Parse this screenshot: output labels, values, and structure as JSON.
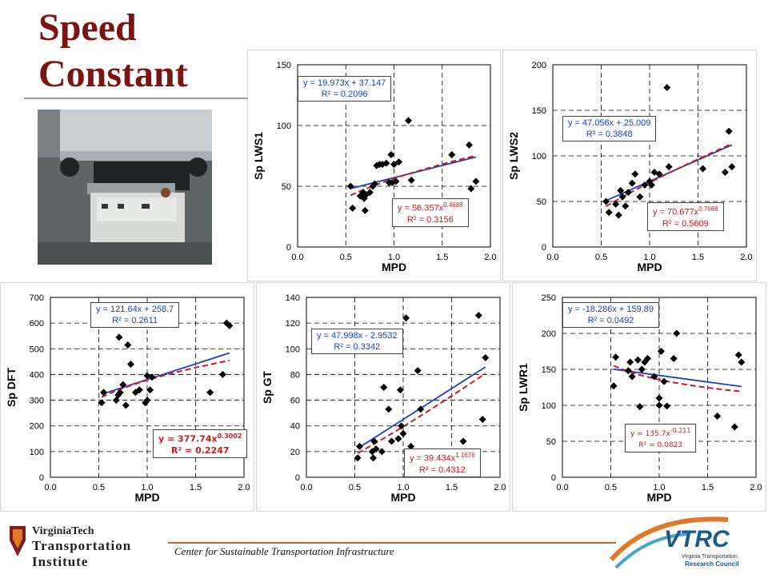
{
  "page": {
    "title_line1": "Speed",
    "title_line2": "Constant",
    "footer_text": "Center for Sustainable Transportation Infrastructure",
    "vt_logo": {
      "line1": "VirginiaTech",
      "line2": "Transportation",
      "line3": "Institute"
    },
    "vtrc_logo": {
      "name": "VTRC",
      "sub1": "Virginia Transportation",
      "sub2": "Research Council"
    }
  },
  "colors": {
    "title": "#7a1513",
    "linear_fit": "#1f3fbf",
    "power_fit": "#c81d1d",
    "points": "#000000"
  },
  "chart_data": [
    {
      "id": "lws1",
      "type": "scatter",
      "xlabel": "MPD",
      "ylabel": "Sp LWS1",
      "xlim": [
        0,
        2.0
      ],
      "ylim": [
        0,
        150
      ],
      "xticks": [
        "0.0",
        "0.5",
        "1.0",
        "1.5",
        "2.0"
      ],
      "yticks": [
        "0",
        "50",
        "100",
        "150"
      ],
      "grid": true,
      "points": [
        [
          0.55,
          50
        ],
        [
          0.57,
          32
        ],
        [
          0.65,
          42
        ],
        [
          0.68,
          45
        ],
        [
          0.69,
          40
        ],
        [
          0.7,
          30
        ],
        [
          0.71,
          43
        ],
        [
          0.75,
          45
        ],
        [
          0.78,
          50
        ],
        [
          0.8,
          52
        ],
        [
          0.82,
          67
        ],
        [
          0.85,
          68
        ],
        [
          0.88,
          68
        ],
        [
          0.92,
          69
        ],
        [
          0.95,
          53
        ],
        [
          0.97,
          76
        ],
        [
          0.98,
          53
        ],
        [
          1.0,
          68
        ],
        [
          1.02,
          54
        ],
        [
          1.05,
          70
        ],
        [
          1.15,
          104
        ],
        [
          1.18,
          55
        ],
        [
          1.6,
          76
        ],
        [
          1.78,
          84
        ],
        [
          1.8,
          48
        ],
        [
          1.85,
          54
        ]
      ],
      "linear": {
        "slope": 19.973,
        "intercept": 37.147,
        "label": "y = 19.973x + 37.147",
        "r2": "R² = 0.2096"
      },
      "power": {
        "a": 56.357,
        "b": 0.4688,
        "label_base": "y = 56.357x",
        "label_exp": "0.4688",
        "r2": "R² = 0.3156"
      }
    },
    {
      "id": "lws2",
      "type": "scatter",
      "xlabel": "MPD",
      "ylabel": "Sp LWS2",
      "xlim": [
        0,
        2.0
      ],
      "ylim": [
        0,
        200
      ],
      "xticks": [
        "0.0",
        "0.5",
        "1.0",
        "1.5",
        "2.0"
      ],
      "yticks": [
        "0",
        "50",
        "100",
        "150",
        "200"
      ],
      "grid": true,
      "points": [
        [
          0.55,
          50
        ],
        [
          0.58,
          38
        ],
        [
          0.65,
          47
        ],
        [
          0.68,
          35
        ],
        [
          0.7,
          62
        ],
        [
          0.72,
          55
        ],
        [
          0.75,
          45
        ],
        [
          0.78,
          60
        ],
        [
          0.82,
          70
        ],
        [
          0.85,
          80
        ],
        [
          0.9,
          55
        ],
        [
          0.95,
          68
        ],
        [
          1.0,
          72
        ],
        [
          1.02,
          68
        ],
        [
          1.05,
          82
        ],
        [
          1.1,
          80
        ],
        [
          1.18,
          175
        ],
        [
          1.2,
          88
        ],
        [
          1.55,
          86
        ],
        [
          1.78,
          82
        ],
        [
          1.82,
          127
        ],
        [
          1.85,
          88
        ]
      ],
      "linear": {
        "slope": 47.056,
        "intercept": 25.009,
        "label": "y = 47.056x + 25.009",
        "r2": "R² = 0.3848"
      },
      "power": {
        "a": 70.677,
        "b": 0.7668,
        "label_base": "y = 70.677x",
        "label_exp": "0.7668",
        "r2": "R² = 0.5609"
      }
    },
    {
      "id": "dft",
      "type": "scatter",
      "xlabel": "MPD",
      "ylabel": "Sp DFT",
      "xlim": [
        0,
        2.0
      ],
      "ylim": [
        0,
        700
      ],
      "xticks": [
        "0.0",
        "0.5",
        "1.0",
        "1.5",
        "2.0"
      ],
      "yticks": [
        "0",
        "100",
        "200",
        "300",
        "400",
        "500",
        "600",
        "700"
      ],
      "grid": true,
      "points": [
        [
          0.53,
          290
        ],
        [
          0.55,
          330
        ],
        [
          0.68,
          300
        ],
        [
          0.7,
          320
        ],
        [
          0.71,
          545
        ],
        [
          0.72,
          330
        ],
        [
          0.75,
          360
        ],
        [
          0.78,
          280
        ],
        [
          0.8,
          515
        ],
        [
          0.83,
          440
        ],
        [
          0.88,
          330
        ],
        [
          0.92,
          340
        ],
        [
          0.98,
          290
        ],
        [
          1.0,
          300
        ],
        [
          1.0,
          395
        ],
        [
          1.03,
          340
        ],
        [
          1.05,
          390
        ],
        [
          1.65,
          330
        ],
        [
          1.78,
          400
        ],
        [
          1.82,
          600
        ],
        [
          1.85,
          590
        ]
      ],
      "linear": {
        "slope": 121.64,
        "intercept": 258.7,
        "label": "y = 121.64x + 258.7",
        "r2": "R² = 0.2611"
      },
      "power": {
        "a": 377.74,
        "b": 0.3002,
        "label_base": "y = 377.74x",
        "label_exp": "0.3002",
        "r2": "R² = 0.2247"
      }
    },
    {
      "id": "gt",
      "type": "scatter",
      "xlabel": "MPD",
      "ylabel": "Sp GT",
      "xlim": [
        0,
        2.0
      ],
      "ylim": [
        0,
        140
      ],
      "xticks": [
        "0.0",
        "0.5",
        "1.0",
        "1.5",
        "2.0"
      ],
      "yticks": [
        "0",
        "20",
        "40",
        "60",
        "80",
        "100",
        "120",
        "140"
      ],
      "grid": true,
      "points": [
        [
          0.53,
          15
        ],
        [
          0.55,
          24
        ],
        [
          0.68,
          20
        ],
        [
          0.69,
          15
        ],
        [
          0.7,
          28
        ],
        [
          0.72,
          22
        ],
        [
          0.78,
          20
        ],
        [
          0.8,
          70
        ],
        [
          0.85,
          53
        ],
        [
          0.88,
          28
        ],
        [
          0.95,
          30
        ],
        [
          0.97,
          68
        ],
        [
          0.98,
          40
        ],
        [
          1.0,
          34
        ],
        [
          1.03,
          124
        ],
        [
          1.08,
          24
        ],
        [
          1.15,
          83
        ],
        [
          1.18,
          53
        ],
        [
          1.62,
          28
        ],
        [
          1.78,
          126
        ],
        [
          1.82,
          45
        ],
        [
          1.85,
          93
        ]
      ],
      "linear": {
        "slope": 47.998,
        "intercept": -2.9532,
        "label": "y = 47.998x - 2.9532",
        "r2": "R² = 0.3342"
      },
      "power": {
        "a": 39.434,
        "b": 1.1676,
        "label_base": "y = 39.434x",
        "label_exp": "1.1676",
        "r2": "R² = 0.4312"
      }
    },
    {
      "id": "lwr1",
      "type": "scatter",
      "xlabel": "MPD",
      "ylabel": "Sp LWR1",
      "xlim": [
        0,
        2.0
      ],
      "ylim": [
        0,
        250
      ],
      "xticks": [
        "0.0",
        "0.5",
        "1.0",
        "1.5",
        "2.0"
      ],
      "yticks": [
        "0",
        "50",
        "100",
        "150",
        "200",
        "250"
      ],
      "grid": true,
      "points": [
        [
          0.53,
          127
        ],
        [
          0.55,
          167
        ],
        [
          0.68,
          148
        ],
        [
          0.7,
          160
        ],
        [
          0.72,
          140
        ],
        [
          0.78,
          163
        ],
        [
          0.8,
          98
        ],
        [
          0.82,
          150
        ],
        [
          0.85,
          160
        ],
        [
          0.88,
          165
        ],
        [
          0.95,
          140
        ],
        [
          1.0,
          110
        ],
        [
          1.0,
          100
        ],
        [
          1.02,
          175
        ],
        [
          1.05,
          133
        ],
        [
          1.08,
          99
        ],
        [
          1.15,
          165
        ],
        [
          1.18,
          200
        ],
        [
          1.6,
          85
        ],
        [
          1.78,
          70
        ],
        [
          1.82,
          170
        ],
        [
          1.85,
          160
        ]
      ],
      "linear": {
        "slope": -18.286,
        "intercept": 159.89,
        "label": "y = -18.286x + 159.89",
        "r2": "R² = 0.0492"
      },
      "power": {
        "a": 135.7,
        "b": -0.211,
        "label_base": "y = 135.7x",
        "label_exp": "-0.211",
        "r2": "R² = 0.0823"
      }
    }
  ]
}
